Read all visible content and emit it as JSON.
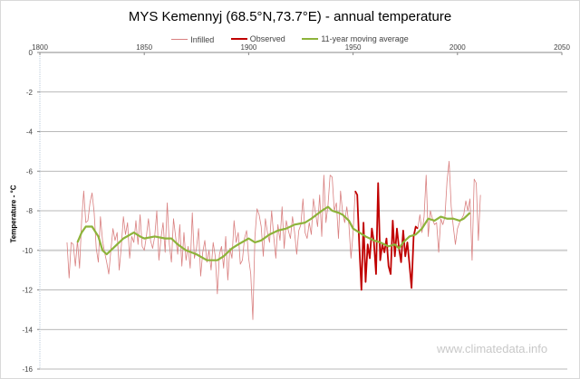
{
  "chart_data": {
    "type": "line",
    "title": "MYS Kemennyj (68.5°N,73.7°E)  - annual temperature",
    "xlabel": "",
    "ylabel": "Temperature - °C",
    "xlim": [
      1800,
      2050
    ],
    "ylim": [
      -16,
      0
    ],
    "xticks": [
      "1800",
      "1850",
      "1900",
      "1950",
      "2000",
      "2050"
    ],
    "yticks": [
      "0",
      "-2",
      "-4",
      "-6",
      "-8",
      "-10",
      "-12",
      "-14",
      "-16"
    ],
    "x_axis_position": "top",
    "grid": true,
    "legend": "top",
    "watermark": "www.climatedata.info",
    "series": [
      {
        "name": "Infilled",
        "color": "#d98080",
        "start_year": 1813,
        "values": [
          -9.6,
          -11.4,
          -9.6,
          -9.7,
          -10.8,
          -9.5,
          -10.9,
          -8.5,
          -7.0,
          -8.6,
          -8.5,
          -7.6,
          -7.1,
          -8.1,
          -9.9,
          -10.6,
          -8.3,
          -9.5,
          -10.1,
          -10.6,
          -11.2,
          -10.0,
          -8.9,
          -9.5,
          -9.1,
          -11.0,
          -9.8,
          -8.3,
          -9.2,
          -8.6,
          -10.4,
          -9.3,
          -9.6,
          -8.5,
          -9.7,
          -8.2,
          -9.8,
          -10.0,
          -9.3,
          -8.4,
          -9.5,
          -9.9,
          -9.3,
          -8.0,
          -10.5,
          -9.4,
          -8.6,
          -10.1,
          -7.6,
          -9.7,
          -10.6,
          -8.4,
          -9.3,
          -10.2,
          -8.7,
          -10.8,
          -9.1,
          -10.5,
          -9.8,
          -10.9,
          -8.1,
          -10.4,
          -9.9,
          -8.9,
          -11.3,
          -10.1,
          -9.5,
          -10.6,
          -10.0,
          -11.0,
          -9.6,
          -10.3,
          -12.2,
          -10.2,
          -9.8,
          -10.9,
          -9.3,
          -11.5,
          -9.9,
          -10.4,
          -8.5,
          -9.6,
          -9.1,
          -10.7,
          -10.5,
          -9.4,
          -9.0,
          -10.4,
          -11.2,
          -13.5,
          -9.3,
          -7.9,
          -8.2,
          -8.8,
          -10.3,
          -8.4,
          -9.1,
          -9.6,
          -8.0,
          -9.3,
          -10.4,
          -8.7,
          -9.5,
          -7.8,
          -9.9,
          -8.5,
          -9.0,
          -9.4,
          -8.3,
          -9.1,
          -10.2,
          -9.0,
          -8.7,
          -7.4,
          -9.1,
          -9.4,
          -8.6,
          -9.2,
          -7.4,
          -8.1,
          -8.8,
          -7.2,
          -9.3,
          -6.2,
          -8.6,
          -7.7,
          -6.2,
          -6.3,
          -8.0,
          -7.6,
          -9.4,
          -7.0,
          -8.1,
          -8.6,
          -7.8,
          -8.7,
          -10.4,
          -9.1,
          -7.0,
          -7.2,
          -9.8,
          -12.0,
          -8.6,
          -11.6,
          -9.7,
          -10.4,
          -8.9,
          -9.6,
          -11.2,
          -6.6,
          -10.5,
          -9.7,
          -10.1,
          -9.4,
          -10.8,
          -11.2,
          -8.5,
          -10.3,
          -8.9,
          -9.9,
          -10.6,
          -9.0,
          -10.3,
          -9.6,
          -10.7,
          -11.9,
          -9.3,
          -8.8,
          -8.9,
          -8.2,
          -9.1,
          -8.3,
          -6.2,
          -9.3,
          -8.0,
          -8.4,
          -8.7,
          -8.6,
          -10.1,
          -8.4,
          -8.7,
          -8.3,
          -6.5,
          -5.5,
          -7.8,
          -8.8,
          -9.7,
          -8.9,
          -8.6,
          -8.4,
          -8.2,
          -7.5,
          -8.0,
          -7.4,
          -10.5,
          -6.4,
          -6.6,
          -9.5,
          -7.2
        ]
      },
      {
        "name": "Observed",
        "color": "#c00000",
        "start_year": 1951,
        "values": [
          -7.0,
          -7.2,
          -9.8,
          -12.0,
          -8.6,
          -11.6,
          -9.7,
          -10.4,
          -8.9,
          -9.6,
          -11.2,
          -6.6,
          -10.5,
          -9.7,
          -10.1,
          -9.4,
          -10.8,
          -11.2,
          -8.5,
          -10.3,
          -8.9,
          -9.9,
          -10.6,
          -9.0,
          -10.3,
          -9.6,
          -10.7,
          -11.9,
          -9.3,
          -8.8,
          -8.9
        ]
      },
      {
        "name": "11-year moving average",
        "color": "#8db33a",
        "x": [
          1818,
          1820,
          1822,
          1825,
          1828,
          1830,
          1832,
          1835,
          1840,
          1845,
          1848,
          1850,
          1855,
          1860,
          1863,
          1866,
          1870,
          1875,
          1880,
          1885,
          1888,
          1892,
          1895,
          1900,
          1903,
          1906,
          1910,
          1914,
          1918,
          1922,
          1927,
          1930,
          1935,
          1938,
          1940,
          1943,
          1945,
          1948,
          1950,
          1953,
          1956,
          1960,
          1963,
          1967,
          1970,
          1972,
          1974,
          1977,
          1980,
          1983,
          1986,
          1989,
          1992,
          1995,
          1998,
          2001,
          2003,
          2006
        ],
        "values": [
          -9.6,
          -9.1,
          -8.8,
          -8.8,
          -9.3,
          -10.0,
          -10.2,
          -9.9,
          -9.4,
          -9.1,
          -9.3,
          -9.4,
          -9.3,
          -9.4,
          -9.4,
          -9.7,
          -10.0,
          -10.2,
          -10.5,
          -10.5,
          -10.3,
          -9.9,
          -9.7,
          -9.4,
          -9.6,
          -9.5,
          -9.2,
          -9.0,
          -8.9,
          -8.7,
          -8.6,
          -8.4,
          -8.0,
          -7.8,
          -8.0,
          -8.1,
          -8.2,
          -8.5,
          -8.9,
          -9.1,
          -9.3,
          -9.5,
          -9.6,
          -9.8,
          -9.7,
          -9.9,
          -9.6,
          -9.3,
          -9.2,
          -8.9,
          -8.4,
          -8.5,
          -8.3,
          -8.4,
          -8.4,
          -8.5,
          -8.4,
          -8.1
        ]
      }
    ]
  }
}
